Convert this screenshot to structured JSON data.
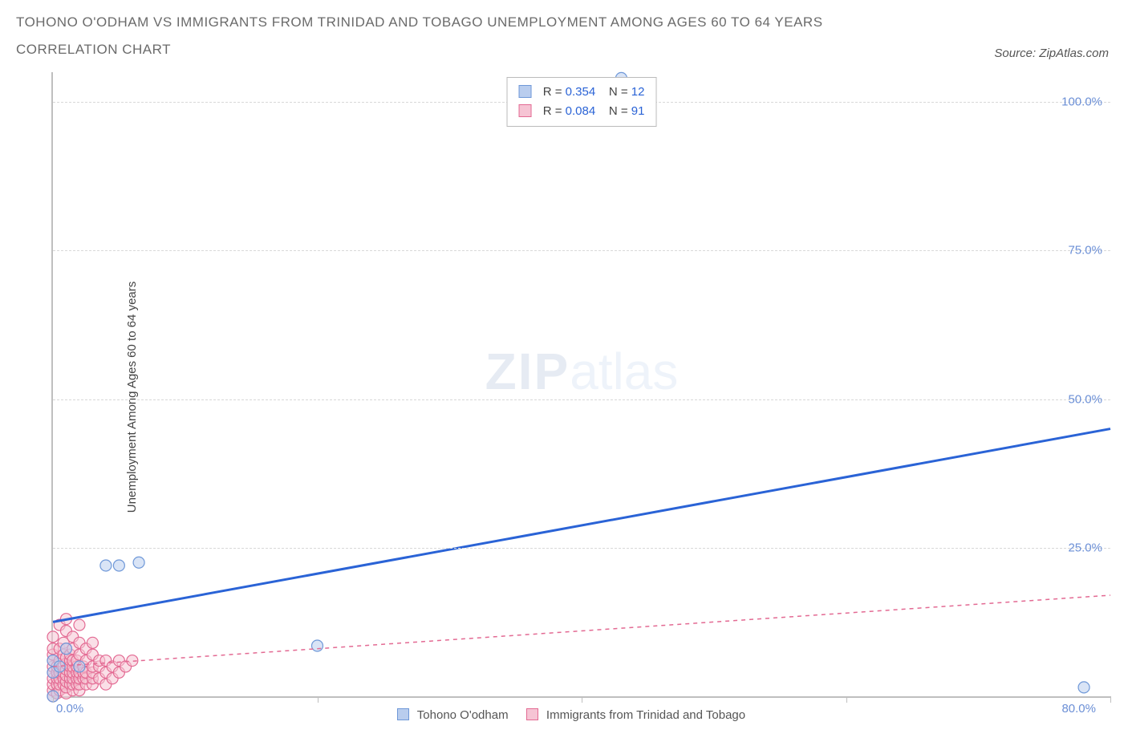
{
  "title_line1": "TOHONO O'ODHAM VS IMMIGRANTS FROM TRINIDAD AND TOBAGO UNEMPLOYMENT AMONG AGES 60 TO 64 YEARS",
  "title_line2": "CORRELATION CHART",
  "source_prefix": "Source: ",
  "source_name": "ZipAtlas.com",
  "y_axis_label": "Unemployment Among Ages 60 to 64 years",
  "watermark_zip": "ZIP",
  "watermark_atlas": "atlas",
  "chart": {
    "type": "scatter-with-trend",
    "background_color": "#ffffff",
    "axis_color": "#bfbfbf",
    "grid_color": "#d8d8d8",
    "tick_label_color": "#6b8fd6",
    "x_range": [
      0,
      80
    ],
    "y_range": [
      0,
      105
    ],
    "x_tick_positions": [
      0,
      20,
      40,
      60,
      80
    ],
    "x_tick_labels_shown": {
      "0": "0.0%",
      "80": "80.0%"
    },
    "y_ticks": [
      {
        "v": 25,
        "label": "25.0%"
      },
      {
        "v": 50,
        "label": "50.0%"
      },
      {
        "v": 75,
        "label": "75.0%"
      },
      {
        "v": 100,
        "label": "100.0%"
      }
    ],
    "marker_radius": 7,
    "marker_stroke_width": 1.2,
    "series": [
      {
        "key": "tohono",
        "name": "Tohono O'odham",
        "fill": "#b9cdee",
        "stroke": "#6f98d8",
        "trend_color": "#2a63d6",
        "trend_width": 3,
        "trend_dash": "none",
        "R": "0.354",
        "N": "12",
        "trend": {
          "x1": 0,
          "y1": 12.5,
          "x2": 80,
          "y2": 45.0
        },
        "points": [
          {
            "x": 0.0,
            "y": 0.0
          },
          {
            "x": 0.0,
            "y": 4.0
          },
          {
            "x": 0.0,
            "y": 6.0
          },
          {
            "x": 0.5,
            "y": 5.0
          },
          {
            "x": 1.0,
            "y": 8.0
          },
          {
            "x": 2.0,
            "y": 5.0
          },
          {
            "x": 4.0,
            "y": 22.0
          },
          {
            "x": 5.0,
            "y": 22.0
          },
          {
            "x": 6.5,
            "y": 22.5
          },
          {
            "x": 20.0,
            "y": 8.5
          },
          {
            "x": 43.0,
            "y": 104.0
          },
          {
            "x": 78.0,
            "y": 1.5
          }
        ]
      },
      {
        "key": "trinidad",
        "name": "Immigrants from Trinidad and Tobago",
        "fill": "#f6c4d4",
        "stroke": "#e36a93",
        "trend_color": "#e36a93",
        "trend_width": 1.5,
        "trend_dash": "5,5",
        "R": "0.084",
        "N": "91",
        "trend": {
          "x1": 0,
          "y1": 5.0,
          "x2": 80,
          "y2": 17.0
        },
        "points": [
          {
            "x": 0.0,
            "y": 0.0
          },
          {
            "x": 0.0,
            "y": 1.0
          },
          {
            "x": 0.0,
            "y": 2.0
          },
          {
            "x": 0.0,
            "y": 3.0
          },
          {
            "x": 0.0,
            "y": 4.0
          },
          {
            "x": 0.0,
            "y": 5.0
          },
          {
            "x": 0.0,
            "y": 6.0
          },
          {
            "x": 0.0,
            "y": 7.0
          },
          {
            "x": 0.0,
            "y": 8.0
          },
          {
            "x": 0.0,
            "y": 10.0
          },
          {
            "x": 0.3,
            "y": 0.5
          },
          {
            "x": 0.3,
            "y": 2.0
          },
          {
            "x": 0.3,
            "y": 3.0
          },
          {
            "x": 0.3,
            "y": 4.0
          },
          {
            "x": 0.3,
            "y": 5.0
          },
          {
            "x": 0.5,
            "y": 1.0
          },
          {
            "x": 0.5,
            "y": 2.0
          },
          {
            "x": 0.5,
            "y": 3.0
          },
          {
            "x": 0.5,
            "y": 4.0
          },
          {
            "x": 0.5,
            "y": 6.0
          },
          {
            "x": 0.5,
            "y": 8.0
          },
          {
            "x": 0.5,
            "y": 12.0
          },
          {
            "x": 0.8,
            "y": 2.0
          },
          {
            "x": 0.8,
            "y": 3.0
          },
          {
            "x": 0.8,
            "y": 4.0
          },
          {
            "x": 0.8,
            "y": 5.0
          },
          {
            "x": 0.8,
            "y": 7.0
          },
          {
            "x": 0.8,
            "y": 9.0
          },
          {
            "x": 1.0,
            "y": 0.5
          },
          {
            "x": 1.0,
            "y": 1.5
          },
          {
            "x": 1.0,
            "y": 2.5
          },
          {
            "x": 1.0,
            "y": 3.5
          },
          {
            "x": 1.0,
            "y": 4.5
          },
          {
            "x": 1.0,
            "y": 5.5
          },
          {
            "x": 1.0,
            "y": 6.5
          },
          {
            "x": 1.0,
            "y": 8.0
          },
          {
            "x": 1.0,
            "y": 11.0
          },
          {
            "x": 1.0,
            "y": 13.0
          },
          {
            "x": 1.3,
            "y": 2.0
          },
          {
            "x": 1.3,
            "y": 3.0
          },
          {
            "x": 1.3,
            "y": 4.0
          },
          {
            "x": 1.3,
            "y": 5.0
          },
          {
            "x": 1.3,
            "y": 6.0
          },
          {
            "x": 1.3,
            "y": 7.0
          },
          {
            "x": 1.5,
            "y": 1.0
          },
          {
            "x": 1.5,
            "y": 2.0
          },
          {
            "x": 1.5,
            "y": 3.0
          },
          {
            "x": 1.5,
            "y": 4.0
          },
          {
            "x": 1.5,
            "y": 5.0
          },
          {
            "x": 1.5,
            "y": 6.0
          },
          {
            "x": 1.5,
            "y": 8.0
          },
          {
            "x": 1.5,
            "y": 10.0
          },
          {
            "x": 1.8,
            "y": 2.0
          },
          {
            "x": 1.8,
            "y": 3.0
          },
          {
            "x": 1.8,
            "y": 4.0
          },
          {
            "x": 1.8,
            "y": 5.0
          },
          {
            "x": 1.8,
            "y": 6.0
          },
          {
            "x": 2.0,
            "y": 1.0
          },
          {
            "x": 2.0,
            "y": 2.0
          },
          {
            "x": 2.0,
            "y": 3.0
          },
          {
            "x": 2.0,
            "y": 4.0
          },
          {
            "x": 2.0,
            "y": 5.0
          },
          {
            "x": 2.0,
            "y": 7.0
          },
          {
            "x": 2.0,
            "y": 9.0
          },
          {
            "x": 2.0,
            "y": 12.0
          },
          {
            "x": 2.3,
            "y": 3.0
          },
          {
            "x": 2.3,
            "y": 4.0
          },
          {
            "x": 2.3,
            "y": 5.0
          },
          {
            "x": 2.5,
            "y": 2.0
          },
          {
            "x": 2.5,
            "y": 3.0
          },
          {
            "x": 2.5,
            "y": 4.0
          },
          {
            "x": 2.5,
            "y": 6.0
          },
          {
            "x": 2.5,
            "y": 8.0
          },
          {
            "x": 3.0,
            "y": 2.0
          },
          {
            "x": 3.0,
            "y": 3.0
          },
          {
            "x": 3.0,
            "y": 4.0
          },
          {
            "x": 3.0,
            "y": 5.0
          },
          {
            "x": 3.0,
            "y": 7.0
          },
          {
            "x": 3.0,
            "y": 9.0
          },
          {
            "x": 3.5,
            "y": 3.0
          },
          {
            "x": 3.5,
            "y": 5.0
          },
          {
            "x": 3.5,
            "y": 6.0
          },
          {
            "x": 4.0,
            "y": 2.0
          },
          {
            "x": 4.0,
            "y": 4.0
          },
          {
            "x": 4.0,
            "y": 6.0
          },
          {
            "x": 4.5,
            "y": 3.0
          },
          {
            "x": 4.5,
            "y": 5.0
          },
          {
            "x": 5.0,
            "y": 4.0
          },
          {
            "x": 5.0,
            "y": 6.0
          },
          {
            "x": 5.5,
            "y": 5.0
          },
          {
            "x": 6.0,
            "y": 6.0
          }
        ]
      }
    ]
  },
  "legend_prefix_R": "R = ",
  "legend_prefix_N": "N = ",
  "bottom_legend_series1": "Tohono O'odham",
  "bottom_legend_series2": "Immigrants from Trinidad and Tobago"
}
